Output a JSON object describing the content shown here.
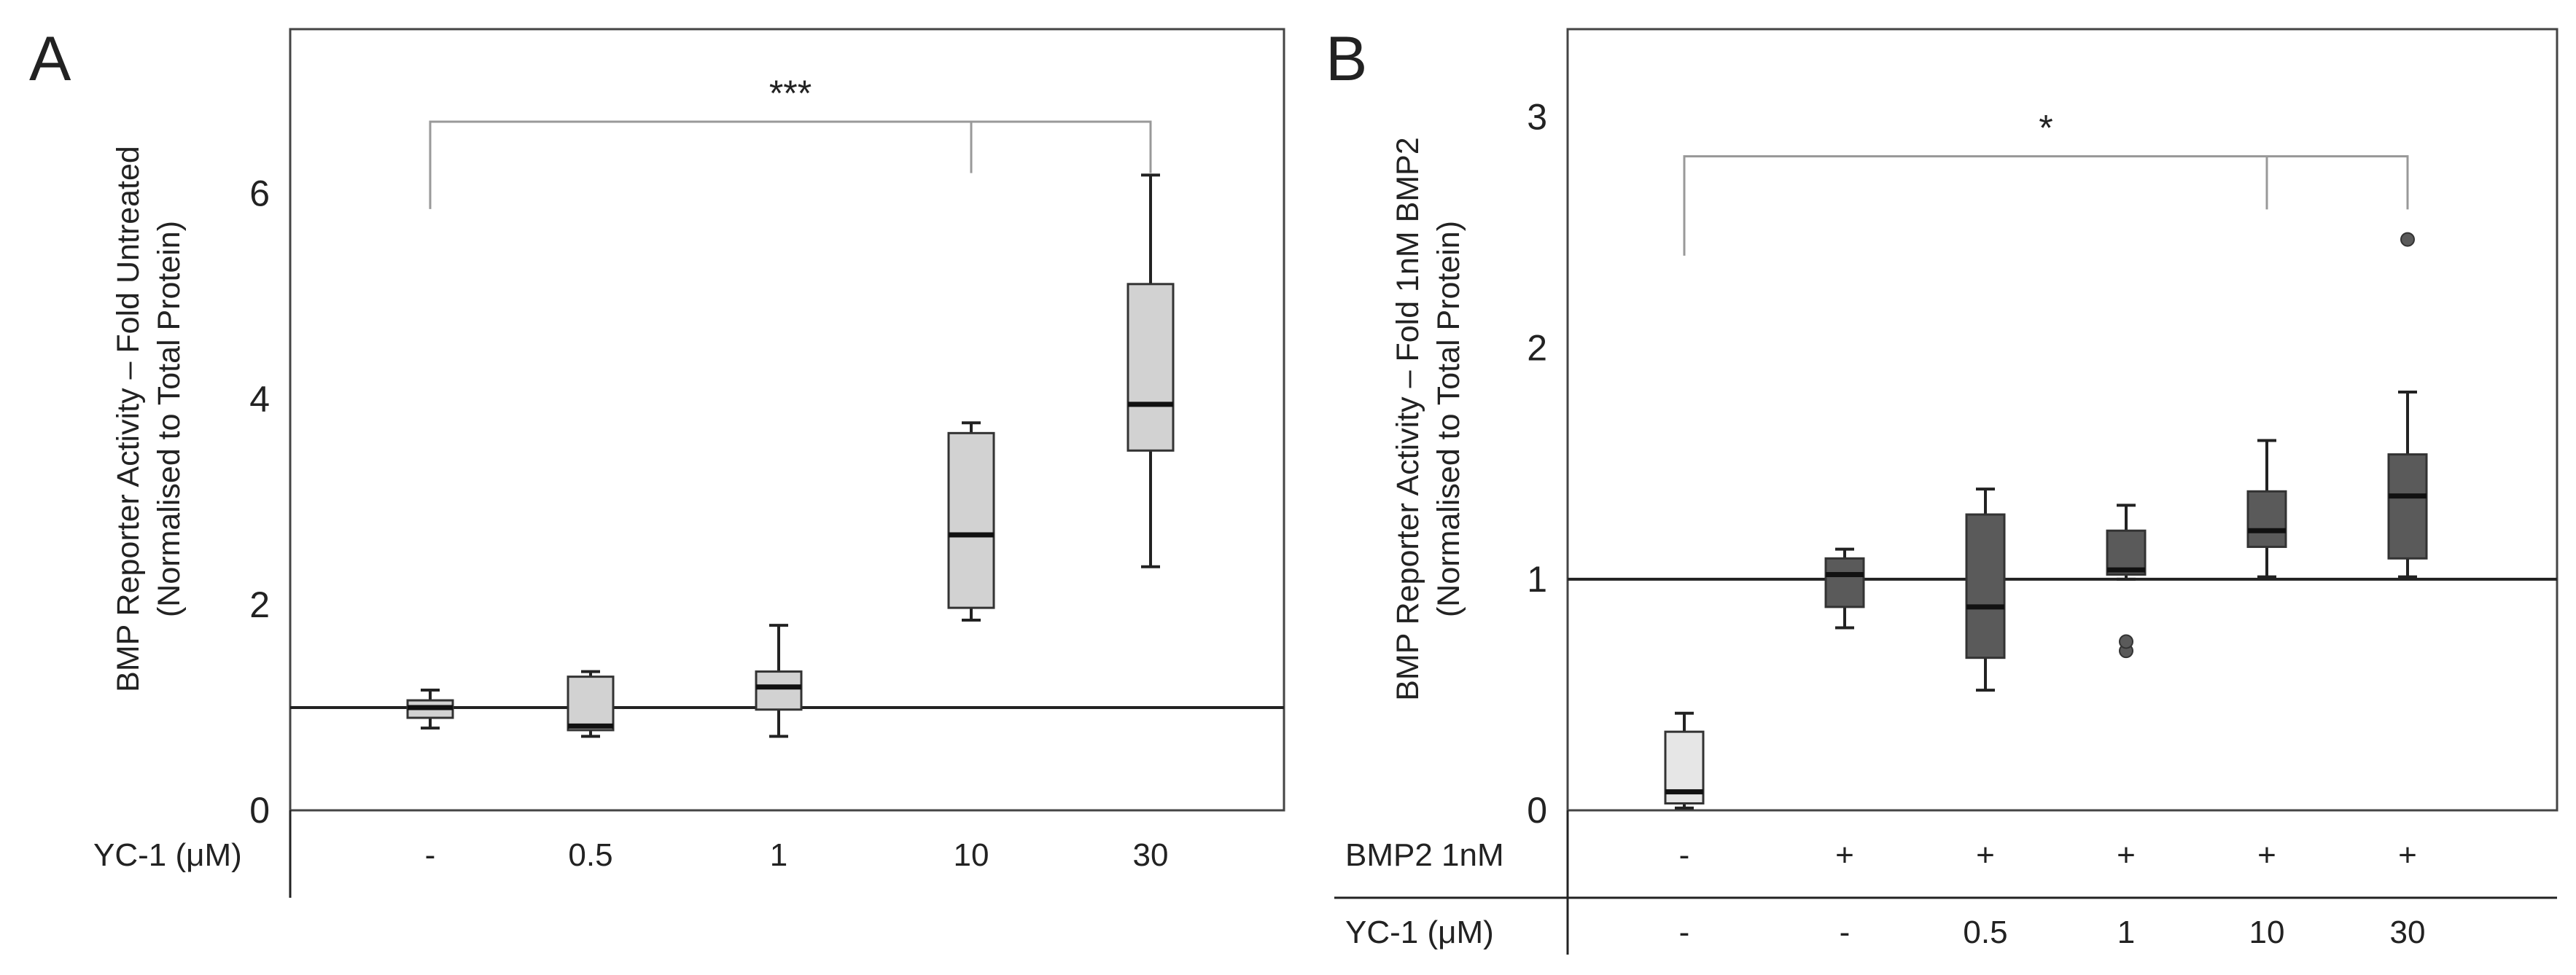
{
  "chart_data": [
    {
      "panel": "A",
      "type": "box",
      "ylabel": "BMP Reporter Activity – Fold Untreated",
      "ylabel2": "(Normalised to Total Protein)",
      "ylim": [
        0,
        7.6
      ],
      "yticks": [
        0,
        2,
        4,
        6
      ],
      "reference_line": 1,
      "x_rows": [
        {
          "label": "YC-1 (μM)",
          "values": [
            "-",
            "0.5",
            "1",
            "10",
            "30"
          ]
        }
      ],
      "boxes": [
        {
          "min": 0.8,
          "q1": 0.9,
          "median": 1.0,
          "q3": 1.07,
          "max": 1.17,
          "fill": "#d2d2d2",
          "outliers": []
        },
        {
          "min": 0.72,
          "q1": 0.78,
          "median": 0.82,
          "q3": 1.3,
          "max": 1.35,
          "fill": "#d2d2d2",
          "outliers": []
        },
        {
          "min": 0.72,
          "q1": 0.98,
          "median": 1.2,
          "q3": 1.35,
          "max": 1.8,
          "fill": "#d2d2d2",
          "outliers": []
        },
        {
          "min": 1.85,
          "q1": 1.97,
          "median": 2.68,
          "q3": 3.67,
          "max": 3.77,
          "fill": "#d2d2d2",
          "outliers": []
        },
        {
          "min": 2.37,
          "q1": 3.5,
          "median": 3.95,
          "q3": 5.12,
          "max": 6.18,
          "fill": "#d2d2d2",
          "outliers": []
        }
      ],
      "significance": {
        "text": "***",
        "from": 0,
        "to": [
          3,
          4
        ],
        "y": 6.7,
        "y_left_end": 5.85,
        "y_right_end": 6.2
      }
    },
    {
      "panel": "B",
      "type": "box",
      "ylabel": "BMP Reporter Activity – Fold 1nM BMP2",
      "ylabel2": "(Normalised to Total Protein)",
      "ylim": [
        0,
        3.38
      ],
      "yticks": [
        0,
        1,
        2,
        3
      ],
      "reference_line": 1,
      "x_rows": [
        {
          "label": "BMP2 1nM",
          "values": [
            "-",
            "+",
            "+",
            "+",
            "+",
            "+"
          ]
        },
        {
          "label": "YC-1 (μM)",
          "values": [
            "-",
            "-",
            "0.5",
            "1",
            "10",
            "30"
          ]
        }
      ],
      "boxes": [
        {
          "min": 0.01,
          "q1": 0.03,
          "median": 0.08,
          "q3": 0.34,
          "max": 0.42,
          "fill": "#e6e6e6",
          "outliers": []
        },
        {
          "min": 0.79,
          "q1": 0.88,
          "median": 1.02,
          "q3": 1.09,
          "max": 1.13,
          "fill": "#5a5a5a",
          "outliers": []
        },
        {
          "min": 0.52,
          "q1": 0.66,
          "median": 0.88,
          "q3": 1.28,
          "max": 1.39,
          "fill": "#5a5a5a",
          "outliers": []
        },
        {
          "min": 1.0,
          "q1": 1.02,
          "median": 1.04,
          "q3": 1.21,
          "max": 1.32,
          "fill": "#5a5a5a",
          "outliers": [
            0.69,
            0.73
          ]
        },
        {
          "min": 1.01,
          "q1": 1.14,
          "median": 1.21,
          "q3": 1.38,
          "max": 1.6,
          "fill": "#5a5a5a",
          "outliers": []
        },
        {
          "min": 1.01,
          "q1": 1.09,
          "median": 1.36,
          "q3": 1.54,
          "max": 1.81,
          "fill": "#5a5a5a",
          "outliers": [
            2.47
          ]
        }
      ],
      "significance": {
        "text": "*",
        "from": 0,
        "to": [
          4,
          5
        ],
        "y": 2.83,
        "y_left_end": 2.4,
        "y_right_end": 2.6
      }
    }
  ]
}
